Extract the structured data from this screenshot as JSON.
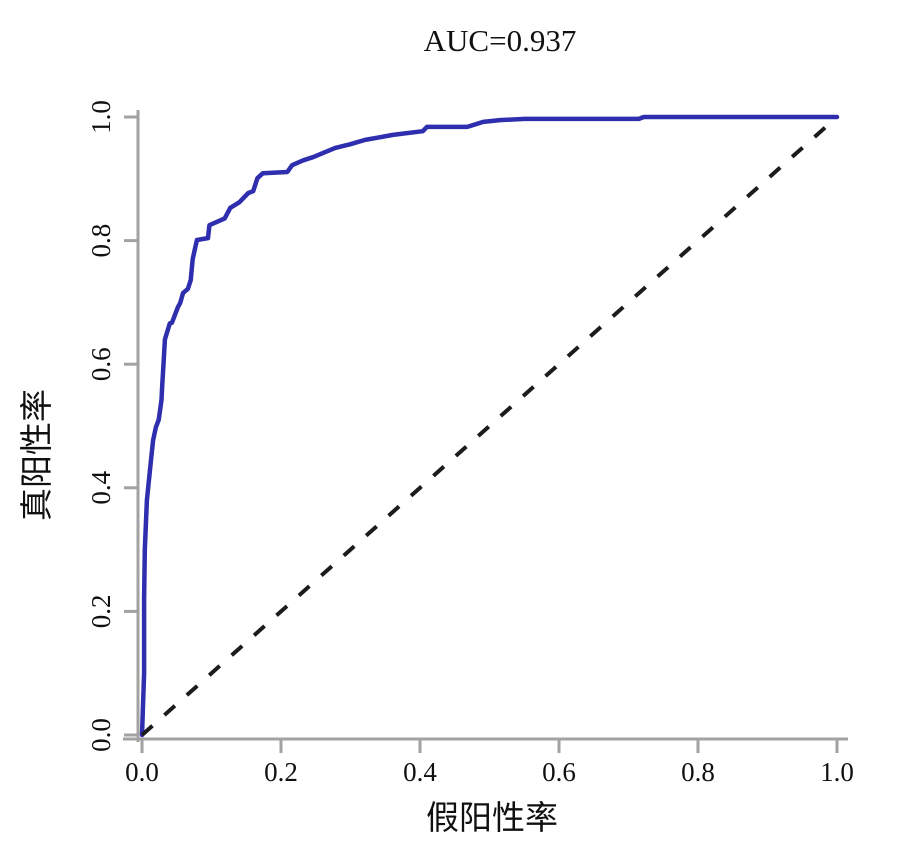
{
  "page": {
    "background": "#ffffff"
  },
  "chart_data": {
    "type": "line",
    "title": "AUC=0.937",
    "auc": 0.937,
    "xlabel": "假阳性率",
    "ylabel": "真阳性率",
    "xlim": [
      0.0,
      1.0
    ],
    "ylim": [
      0.0,
      1.0
    ],
    "x_ticks": [
      "0.0",
      "0.2",
      "0.4",
      "0.6",
      "0.8",
      "1.0"
    ],
    "y_ticks": [
      "0.0",
      "0.2",
      "0.4",
      "0.6",
      "0.8",
      "1.0"
    ],
    "grid": false,
    "legend": "none",
    "axis_color": "#a2a2a2",
    "text_color": "#101010",
    "series": [
      {
        "id": "roc-curve",
        "name": "ROC curve",
        "style": "solid",
        "color": "#2e2eae",
        "width": 4.5,
        "points": [
          [
            0.0,
            0.0
          ],
          [
            0.003,
            0.1
          ],
          [
            0.003,
            0.22
          ],
          [
            0.004,
            0.3
          ],
          [
            0.007,
            0.38
          ],
          [
            0.012,
            0.434
          ],
          [
            0.016,
            0.477
          ],
          [
            0.02,
            0.498
          ],
          [
            0.024,
            0.51
          ],
          [
            0.028,
            0.542
          ],
          [
            0.029,
            0.565
          ],
          [
            0.031,
            0.6
          ],
          [
            0.033,
            0.64
          ],
          [
            0.04,
            0.666
          ],
          [
            0.043,
            0.667
          ],
          [
            0.052,
            0.693
          ],
          [
            0.055,
            0.699
          ],
          [
            0.059,
            0.715
          ],
          [
            0.066,
            0.722
          ],
          [
            0.07,
            0.736
          ],
          [
            0.073,
            0.77
          ],
          [
            0.079,
            0.801
          ],
          [
            0.095,
            0.804
          ],
          [
            0.097,
            0.825
          ],
          [
            0.119,
            0.836
          ],
          [
            0.127,
            0.853
          ],
          [
            0.14,
            0.862
          ],
          [
            0.153,
            0.877
          ],
          [
            0.16,
            0.88
          ],
          [
            0.166,
            0.901
          ],
          [
            0.174,
            0.909
          ],
          [
            0.209,
            0.911
          ],
          [
            0.216,
            0.922
          ],
          [
            0.232,
            0.93
          ],
          [
            0.246,
            0.935
          ],
          [
            0.278,
            0.95
          ],
          [
            0.3,
            0.956
          ],
          [
            0.321,
            0.963
          ],
          [
            0.361,
            0.971
          ],
          [
            0.404,
            0.977
          ],
          [
            0.41,
            0.984
          ],
          [
            0.468,
            0.984
          ],
          [
            0.491,
            0.992
          ],
          [
            0.515,
            0.995
          ],
          [
            0.551,
            0.997
          ],
          [
            0.715,
            0.997
          ],
          [
            0.722,
            1.0
          ],
          [
            1.0,
            1.0
          ]
        ]
      },
      {
        "id": "chance-diagonal",
        "name": "Reference diagonal",
        "style": "dashed",
        "color": "#1c1c1c",
        "width": 4,
        "points": [
          [
            0.0,
            0.0
          ],
          [
            1.0,
            1.0
          ]
        ]
      }
    ]
  }
}
